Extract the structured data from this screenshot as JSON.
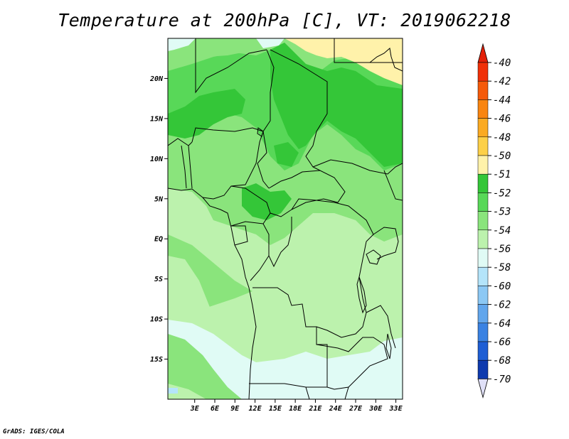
{
  "title": "Temperature at 200hPa [C], VT: 2019062218",
  "footer": "GrADS: IGES/COLA",
  "map": {
    "lon_range": [
      -1,
      34
    ],
    "lat_range": [
      -20,
      25
    ],
    "y_ticks": [
      {
        "lat": 20,
        "label": "20N"
      },
      {
        "lat": 15,
        "label": "15N"
      },
      {
        "lat": 10,
        "label": "10N"
      },
      {
        "lat": 5,
        "label": "5N"
      },
      {
        "lat": 0,
        "label": "EQ"
      },
      {
        "lat": -5,
        "label": "5S"
      },
      {
        "lat": -10,
        "label": "10S"
      },
      {
        "lat": -15,
        "label": "15S"
      }
    ],
    "x_ticks": [
      {
        "lon": 3,
        "label": "3E"
      },
      {
        "lon": 6,
        "label": "6E"
      },
      {
        "lon": 9,
        "label": "9E"
      },
      {
        "lon": 12,
        "label": "12E"
      },
      {
        "lon": 15,
        "label": "15E"
      },
      {
        "lon": 18,
        "label": "18E"
      },
      {
        "lon": 21,
        "label": "21E"
      },
      {
        "lon": 24,
        "label": "24E"
      },
      {
        "lon": 27,
        "label": "27E"
      },
      {
        "lon": 30,
        "label": "30E"
      },
      {
        "lon": 33,
        "label": "33E"
      }
    ]
  },
  "colorbar": {
    "labels": [
      "-40",
      "-42",
      "-44",
      "-46",
      "-48",
      "-50",
      "-51",
      "-52",
      "-53",
      "-54",
      "-56",
      "-58",
      "-60",
      "-62",
      "-64",
      "-66",
      "-68",
      "-70"
    ],
    "colors": [
      "#f03008",
      "#f55a0a",
      "#f98510",
      "#fbaa22",
      "#fdd048",
      "#fff2aa",
      "#34c638",
      "#58d858",
      "#8ae47c",
      "#bcf2ad",
      "#e0fbf5",
      "#b4e4fa",
      "#8cc8f4",
      "#62a6ec",
      "#3a82e2",
      "#1e5ed4",
      "#0e3aae",
      "#0a1a7a"
    ],
    "top_arrow_color": "#e32008",
    "bottom_arrow_color": "#e0e0f8"
  }
}
